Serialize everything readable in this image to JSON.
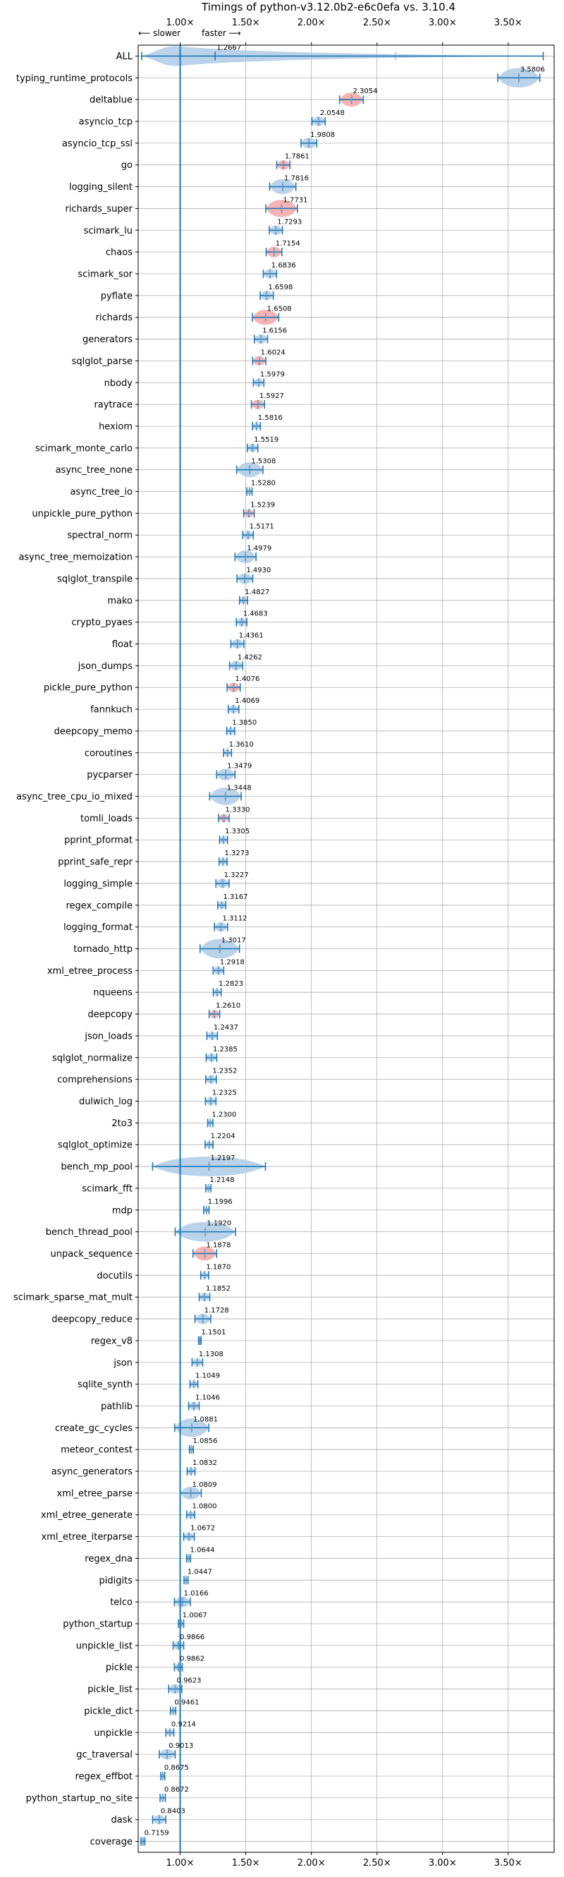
{
  "chart_data": {
    "type": "violin",
    "title": "Timings of python-v3.12.0b2-e6c0efa vs. 3.10.4",
    "direction_slower": "⟵ slower",
    "direction_faster": "faster ⟶",
    "xlim": [
      0.68,
      3.85
    ],
    "x_ticks": [
      1.0,
      1.5,
      2.0,
      2.5,
      3.0,
      3.5
    ],
    "x_tick_labels": [
      "1.00×",
      "1.50×",
      "2.00×",
      "2.50×",
      "3.00×",
      "3.50×"
    ],
    "reference_line": 1.0,
    "grid": true,
    "colors": {
      "violin": "#aecbe6",
      "violin_highlight": "#f4a6a6",
      "line": "#1f77b4",
      "grid": "#b0b0b0"
    },
    "benchmarks": [
      {
        "name": "ALL",
        "value": 1.2667,
        "spread": 0.56,
        "spread_high": 2.5,
        "highlight": false
      },
      {
        "name": "typing_runtime_protocols",
        "value": 3.5806,
        "spread": 0.16,
        "highlight": false
      },
      {
        "name": "deltablue",
        "value": 2.3054,
        "spread": 0.09,
        "highlight": true
      },
      {
        "name": "asyncio_tcp",
        "value": 2.0548,
        "spread": 0.05,
        "highlight": false
      },
      {
        "name": "asyncio_tcp_ssl",
        "value": 1.9808,
        "spread": 0.06,
        "highlight": false
      },
      {
        "name": "go",
        "value": 1.7861,
        "spread": 0.05,
        "highlight": true
      },
      {
        "name": "logging_silent",
        "value": 1.7816,
        "spread": 0.1,
        "highlight": false
      },
      {
        "name": "richards_super",
        "value": 1.7731,
        "spread": 0.12,
        "highlight": true
      },
      {
        "name": "scimark_lu",
        "value": 1.7293,
        "spread": 0.05,
        "highlight": false
      },
      {
        "name": "chaos",
        "value": 1.7154,
        "spread": 0.06,
        "highlight": true
      },
      {
        "name": "scimark_sor",
        "value": 1.6836,
        "spread": 0.05,
        "highlight": false
      },
      {
        "name": "pyflate",
        "value": 1.6598,
        "spread": 0.05,
        "highlight": false
      },
      {
        "name": "richards",
        "value": 1.6508,
        "spread": 0.1,
        "highlight": true
      },
      {
        "name": "generators",
        "value": 1.6156,
        "spread": 0.05,
        "highlight": false
      },
      {
        "name": "sqlglot_parse",
        "value": 1.6024,
        "spread": 0.05,
        "highlight": true
      },
      {
        "name": "nbody",
        "value": 1.5979,
        "spread": 0.04,
        "highlight": false
      },
      {
        "name": "raytrace",
        "value": 1.5927,
        "spread": 0.05,
        "highlight": true
      },
      {
        "name": "hexiom",
        "value": 1.5816,
        "spread": 0.03,
        "highlight": false
      },
      {
        "name": "scimark_monte_carlo",
        "value": 1.5519,
        "spread": 0.04,
        "highlight": false
      },
      {
        "name": "async_tree_none",
        "value": 1.5308,
        "spread": 0.1,
        "highlight": false
      },
      {
        "name": "async_tree_io",
        "value": 1.528,
        "spread": 0.02,
        "highlight": false
      },
      {
        "name": "unpickle_pure_python",
        "value": 1.5239,
        "spread": 0.04,
        "highlight": true
      },
      {
        "name": "spectral_norm",
        "value": 1.5171,
        "spread": 0.04,
        "highlight": false
      },
      {
        "name": "async_tree_memoization",
        "value": 1.4979,
        "spread": 0.08,
        "highlight": false
      },
      {
        "name": "sqlglot_transpile",
        "value": 1.493,
        "spread": 0.06,
        "highlight": false
      },
      {
        "name": "mako",
        "value": 1.4827,
        "spread": 0.03,
        "highlight": false
      },
      {
        "name": "crypto_pyaes",
        "value": 1.4683,
        "spread": 0.04,
        "highlight": false
      },
      {
        "name": "float",
        "value": 1.4361,
        "spread": 0.05,
        "highlight": false
      },
      {
        "name": "json_dumps",
        "value": 1.4262,
        "spread": 0.05,
        "highlight": false
      },
      {
        "name": "pickle_pure_python",
        "value": 1.4076,
        "spread": 0.05,
        "highlight": true
      },
      {
        "name": "fannkuch",
        "value": 1.4069,
        "spread": 0.04,
        "highlight": false
      },
      {
        "name": "deepcopy_memo",
        "value": 1.385,
        "spread": 0.03,
        "highlight": false
      },
      {
        "name": "coroutines",
        "value": 1.361,
        "spread": 0.03,
        "highlight": false
      },
      {
        "name": "pycparser",
        "value": 1.3479,
        "spread": 0.07,
        "highlight": false
      },
      {
        "name": "async_tree_cpu_io_mixed",
        "value": 1.3448,
        "spread": 0.12,
        "highlight": false
      },
      {
        "name": "tomli_loads",
        "value": 1.333,
        "spread": 0.04,
        "highlight": true
      },
      {
        "name": "pprint_pformat",
        "value": 1.3305,
        "spread": 0.03,
        "highlight": false
      },
      {
        "name": "pprint_safe_repr",
        "value": 1.3273,
        "spread": 0.03,
        "highlight": false
      },
      {
        "name": "logging_simple",
        "value": 1.3227,
        "spread": 0.05,
        "highlight": false
      },
      {
        "name": "regex_compile",
        "value": 1.3167,
        "spread": 0.03,
        "highlight": false
      },
      {
        "name": "logging_format",
        "value": 1.3112,
        "spread": 0.05,
        "highlight": false
      },
      {
        "name": "tornado_http",
        "value": 1.3017,
        "spread": 0.15,
        "highlight": false
      },
      {
        "name": "xml_etree_process",
        "value": 1.2918,
        "spread": 0.04,
        "highlight": false
      },
      {
        "name": "nqueens",
        "value": 1.2823,
        "spread": 0.03,
        "highlight": false
      },
      {
        "name": "deepcopy",
        "value": 1.261,
        "spread": 0.04,
        "highlight": true
      },
      {
        "name": "json_loads",
        "value": 1.2437,
        "spread": 0.04,
        "highlight": false
      },
      {
        "name": "sqlglot_normalize",
        "value": 1.2385,
        "spread": 0.04,
        "highlight": false
      },
      {
        "name": "comprehensions",
        "value": 1.2352,
        "spread": 0.04,
        "highlight": false
      },
      {
        "name": "dulwich_log",
        "value": 1.2325,
        "spread": 0.04,
        "highlight": false
      },
      {
        "name": "2to3",
        "value": 1.23,
        "spread": 0.02,
        "highlight": false
      },
      {
        "name": "sqlglot_optimize",
        "value": 1.2204,
        "spread": 0.03,
        "highlight": false
      },
      {
        "name": "bench_mp_pool",
        "value": 1.2197,
        "spread": 0.43,
        "highlight": false
      },
      {
        "name": "scimark_fft",
        "value": 1.2148,
        "spread": 0.02,
        "highlight": false
      },
      {
        "name": "mdp",
        "value": 1.1996,
        "spread": 0.02,
        "highlight": false
      },
      {
        "name": "bench_thread_pool",
        "value": 1.192,
        "spread": 0.23,
        "highlight": false
      },
      {
        "name": "unpack_sequence",
        "value": 1.1878,
        "spread": 0.09,
        "highlight": true
      },
      {
        "name": "docutils",
        "value": 1.187,
        "spread": 0.03,
        "highlight": false
      },
      {
        "name": "scimark_sparse_mat_mult",
        "value": 1.1852,
        "spread": 0.04,
        "highlight": false
      },
      {
        "name": "deepcopy_reduce",
        "value": 1.1728,
        "spread": 0.06,
        "highlight": false
      },
      {
        "name": "regex_v8",
        "value": 1.1501,
        "spread": 0.01,
        "highlight": false
      },
      {
        "name": "json",
        "value": 1.1308,
        "spread": 0.04,
        "highlight": false
      },
      {
        "name": "sqlite_synth",
        "value": 1.1049,
        "spread": 0.03,
        "highlight": false
      },
      {
        "name": "pathlib",
        "value": 1.1046,
        "spread": 0.04,
        "highlight": false
      },
      {
        "name": "create_gc_cycles",
        "value": 1.0881,
        "spread": 0.13,
        "highlight": false
      },
      {
        "name": "meteor_contest",
        "value": 1.0856,
        "spread": 0.015,
        "highlight": false
      },
      {
        "name": "async_generators",
        "value": 1.0832,
        "spread": 0.03,
        "highlight": false
      },
      {
        "name": "xml_etree_parse",
        "value": 1.0809,
        "spread": 0.08,
        "highlight": false
      },
      {
        "name": "xml_etree_generate",
        "value": 1.08,
        "spread": 0.03,
        "highlight": false
      },
      {
        "name": "xml_etree_iterparse",
        "value": 1.0672,
        "spread": 0.04,
        "highlight": false
      },
      {
        "name": "regex_dna",
        "value": 1.0644,
        "spread": 0.015,
        "highlight": false
      },
      {
        "name": "pidigits",
        "value": 1.0447,
        "spread": 0.015,
        "highlight": false
      },
      {
        "name": "telco",
        "value": 1.0166,
        "spread": 0.06,
        "highlight": false
      },
      {
        "name": "python_startup",
        "value": 1.0067,
        "spread": 0.02,
        "highlight": false
      },
      {
        "name": "unpickle_list",
        "value": 0.9866,
        "spread": 0.04,
        "highlight": false
      },
      {
        "name": "pickle",
        "value": 0.9862,
        "spread": 0.03,
        "highlight": false
      },
      {
        "name": "pickle_list",
        "value": 0.9623,
        "spread": 0.05,
        "highlight": false
      },
      {
        "name": "pickle_dict",
        "value": 0.9461,
        "spread": 0.02,
        "highlight": false
      },
      {
        "name": "unpickle",
        "value": 0.9214,
        "spread": 0.03,
        "highlight": false
      },
      {
        "name": "gc_traversal",
        "value": 0.9013,
        "spread": 0.06,
        "highlight": false
      },
      {
        "name": "regex_effbot",
        "value": 0.8675,
        "spread": 0.015,
        "highlight": false
      },
      {
        "name": "python_startup_no_site",
        "value": 0.8672,
        "spread": 0.02,
        "highlight": false
      },
      {
        "name": "dask",
        "value": 0.8403,
        "spread": 0.05,
        "highlight": false
      },
      {
        "name": "coverage",
        "value": 0.7159,
        "spread": 0.015,
        "highlight": false
      }
    ]
  }
}
